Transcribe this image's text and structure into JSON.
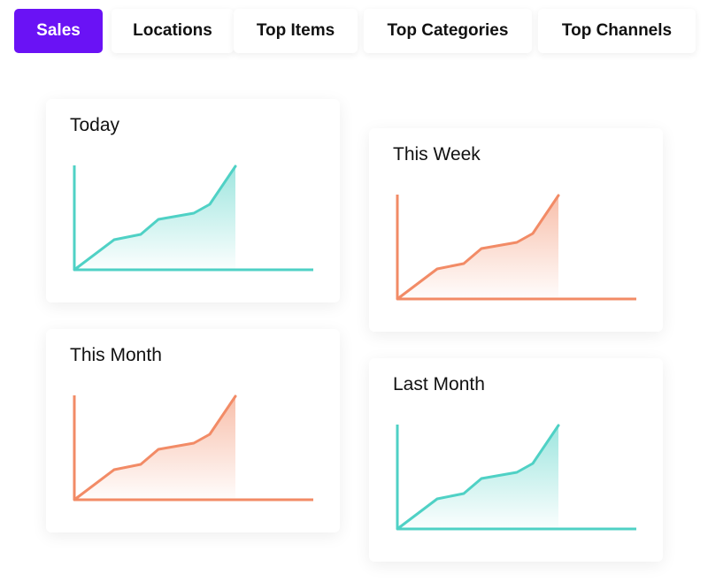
{
  "tabs": [
    {
      "label": "Sales",
      "active": true
    },
    {
      "label": "Locations",
      "active": false
    },
    {
      "label": "Top Items",
      "active": false
    },
    {
      "label": "Top Categories",
      "active": false
    },
    {
      "label": "Top Channels",
      "active": false
    }
  ],
  "colors": {
    "accent": "#6a12f5",
    "teal": "#4fd1c5",
    "orange": "#f28b66"
  },
  "cards": [
    {
      "title": "Today",
      "color": "teal"
    },
    {
      "title": "This Week",
      "color": "orange"
    },
    {
      "title": "This Month",
      "color": "orange"
    },
    {
      "title": "Last Month",
      "color": "teal"
    }
  ],
  "chart_data": [
    {
      "type": "area",
      "x": [
        0,
        1,
        2,
        3,
        4,
        5,
        6,
        7
      ],
      "values": [
        0,
        34,
        40,
        57,
        64,
        74,
        117,
        117
      ],
      "title": "Today",
      "grid": false,
      "legend": "none"
    },
    {
      "type": "area",
      "x": [
        0,
        1,
        2,
        3,
        4,
        5,
        6,
        7
      ],
      "values": [
        0,
        34,
        40,
        57,
        64,
        74,
        117,
        117
      ],
      "title": "This Week",
      "grid": false,
      "legend": "none"
    },
    {
      "type": "area",
      "x": [
        0,
        1,
        2,
        3,
        4,
        5,
        6,
        7
      ],
      "values": [
        0,
        34,
        40,
        57,
        64,
        74,
        117,
        117
      ],
      "title": "This Month",
      "grid": false,
      "legend": "none"
    },
    {
      "type": "area",
      "x": [
        0,
        1,
        2,
        3,
        4,
        5,
        6,
        7
      ],
      "values": [
        0,
        34,
        40,
        57,
        64,
        74,
        117,
        117
      ],
      "title": "Last Month",
      "grid": false,
      "legend": "none"
    }
  ]
}
